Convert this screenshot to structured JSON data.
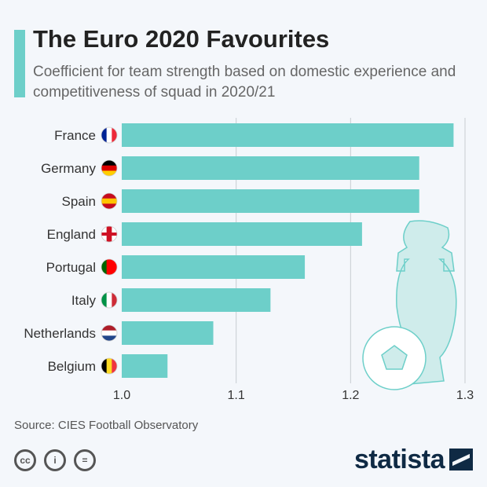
{
  "title": "The Euro 2020 Favourites",
  "subtitle": "Coefficient for team strength based on domestic experience and competitiveness of squad in 2020/21",
  "source": "Source: CIES Football Observatory",
  "brand": "statista",
  "colors": {
    "bar": "#6dcfc9",
    "grid": "#c8cdd2"
  },
  "chart_data": {
    "type": "bar",
    "orientation": "horizontal",
    "categories": [
      "France",
      "Germany",
      "Spain",
      "England",
      "Portugal",
      "Italy",
      "Netherlands",
      "Belgium"
    ],
    "values": [
      1.29,
      1.26,
      1.26,
      1.21,
      1.16,
      1.13,
      1.08,
      1.04
    ],
    "xlim": [
      1.0,
      1.3
    ],
    "ticks": [
      "1.0",
      "1.1",
      "1.2",
      "1.3"
    ],
    "grid": true
  }
}
